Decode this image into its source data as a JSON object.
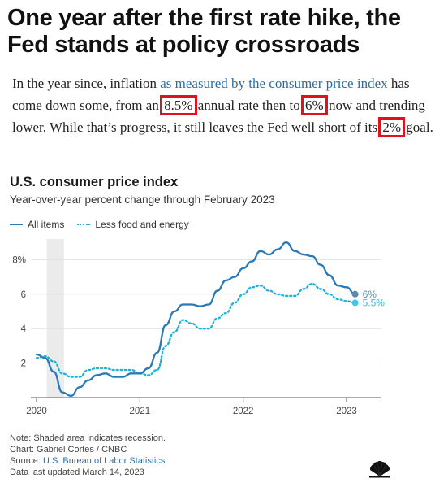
{
  "headline": "One year after the first rate hike, the Fed stands at policy crossroads",
  "article": {
    "p1": "In the year since, inflation ",
    "link": "as measured by the consumer price index",
    "p2": " has come down some, from an ",
    "hl1": "8.5%",
    "p3": " annual rate then to ",
    "hl2": "6%",
    "p4": " now and trending lower. While that’s progress, it still leaves the Fed well short of its ",
    "hl3": "2%",
    "p5": " goal."
  },
  "colors": {
    "all_items": "#2a7ab8",
    "core": "#1ab3d9",
    "highlight": "#e0121e",
    "recession": "#ebebeb"
  },
  "chart_data": {
    "type": "line",
    "title": "U.S. consumer price index",
    "subtitle": "Year-over-year percent change through February 2023",
    "xlabel": "",
    "ylabel": "",
    "x_ticks": [
      "2020",
      "2021",
      "2022",
      "2023"
    ],
    "y_ticks": [
      "2",
      "4",
      "6",
      "8%"
    ],
    "ylim": [
      0,
      9
    ],
    "recession": [
      "2020-02",
      "2020-04"
    ],
    "months": [
      "2020-01",
      "2020-02",
      "2020-03",
      "2020-04",
      "2020-05",
      "2020-06",
      "2020-07",
      "2020-08",
      "2020-09",
      "2020-10",
      "2020-11",
      "2020-12",
      "2021-01",
      "2021-02",
      "2021-03",
      "2021-04",
      "2021-05",
      "2021-06",
      "2021-07",
      "2021-08",
      "2021-09",
      "2021-10",
      "2021-11",
      "2021-12",
      "2022-01",
      "2022-02",
      "2022-03",
      "2022-04",
      "2022-05",
      "2022-06",
      "2022-07",
      "2022-08",
      "2022-09",
      "2022-10",
      "2022-11",
      "2022-12",
      "2023-01",
      "2023-02"
    ],
    "series": [
      {
        "name": "All items",
        "end_label": "6%",
        "values": [
          2.5,
          2.3,
          1.5,
          0.3,
          0.1,
          0.6,
          1.0,
          1.3,
          1.4,
          1.2,
          1.2,
          1.4,
          1.4,
          1.7,
          2.6,
          4.2,
          5.0,
          5.4,
          5.4,
          5.3,
          5.4,
          6.2,
          6.8,
          7.0,
          7.5,
          7.9,
          8.5,
          8.3,
          8.6,
          9.0,
          8.5,
          8.3,
          8.2,
          7.7,
          7.1,
          6.5,
          6.4,
          6.0
        ]
      },
      {
        "name": "Less food and energy",
        "end_label": "5.5%",
        "values": [
          2.3,
          2.4,
          2.1,
          1.4,
          1.2,
          1.2,
          1.6,
          1.7,
          1.7,
          1.6,
          1.6,
          1.6,
          1.4,
          1.3,
          1.6,
          3.0,
          3.8,
          4.5,
          4.3,
          4.0,
          4.0,
          4.6,
          4.9,
          5.5,
          6.0,
          6.4,
          6.5,
          6.2,
          6.0,
          5.9,
          5.9,
          6.3,
          6.6,
          6.3,
          6.0,
          5.7,
          5.6,
          5.5
        ]
      }
    ],
    "legend_position": "top-left",
    "grid": true
  },
  "footer": {
    "note": "Note: Shaded area indicates recession.",
    "chart_credit": "Chart: Gabriel Cortes / CNBC",
    "source_label": "Source: ",
    "source_link": "U.S. Bureau of Labor Statistics",
    "updated": "Data last updated March 14, 2023"
  },
  "logo_icon": "cnbc-peacock-icon"
}
